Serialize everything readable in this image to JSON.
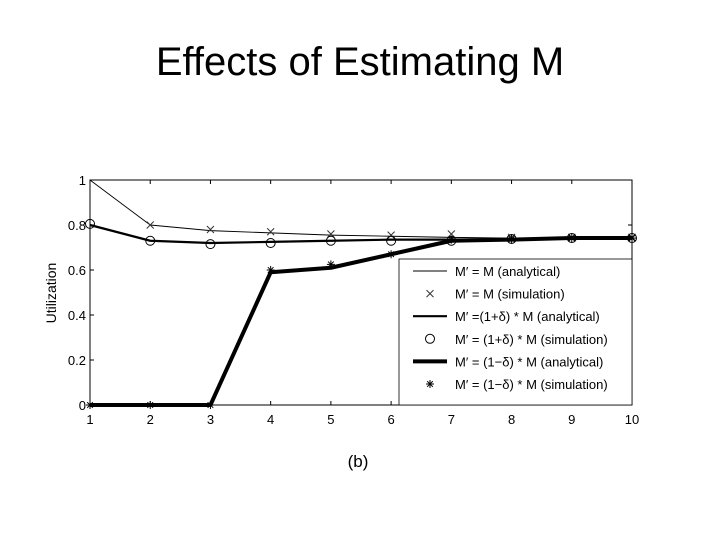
{
  "slide": {
    "title": "Effects of Estimating M"
  },
  "chart_data": {
    "type": "line",
    "title": "",
    "xlabel": "",
    "ylabel": "Utilization",
    "caption": "(b)",
    "x": [
      1,
      2,
      3,
      4,
      5,
      6,
      7,
      8,
      9,
      10
    ],
    "xlim": [
      1,
      10
    ],
    "ylim": [
      0,
      1
    ],
    "x_ticks": [
      "1",
      "2",
      "3",
      "4",
      "5",
      "6",
      "7",
      "8",
      "9",
      "10"
    ],
    "y_ticks": [
      {
        "value": 0,
        "label": "0"
      },
      {
        "value": 0.2,
        "label": "0.2"
      },
      {
        "value": 0.4,
        "label": "0.4"
      },
      {
        "value": 0.6,
        "label": "0.6"
      },
      {
        "value": 0.8,
        "label": "0.8"
      },
      {
        "value": 1,
        "label": "1"
      }
    ],
    "grid": false,
    "legend_position": "right",
    "series": [
      {
        "name": "M′ = M (analytical)",
        "style": "thin-line",
        "values": [
          1.0,
          0.8,
          0.775,
          0.765,
          0.755,
          0.75,
          0.745,
          0.742,
          0.742,
          0.742
        ]
      },
      {
        "name": "M′ = M (simulation)",
        "style": "x-marker",
        "values": [
          null,
          0.8,
          0.78,
          0.77,
          0.76,
          0.755,
          0.76,
          0.745,
          0.745,
          0.745
        ]
      },
      {
        "name": "M′ =(1+δ) * M (analytical)",
        "style": "medium-line",
        "values": [
          0.8,
          0.73,
          0.72,
          0.725,
          0.73,
          0.735,
          0.735,
          0.738,
          0.742,
          0.742
        ]
      },
      {
        "name": "M′ = (1+δ) * M (simulation)",
        "style": "circle-marker",
        "values": [
          0.805,
          0.73,
          0.715,
          0.72,
          0.73,
          0.73,
          0.73,
          0.738,
          0.742,
          0.742
        ]
      },
      {
        "name": "M′ = (1−δ) * M (analytical)",
        "style": "thick-line",
        "values": [
          0,
          0,
          0,
          0.59,
          0.61,
          0.67,
          0.73,
          0.735,
          0.742,
          0.742
        ]
      },
      {
        "name": "M′ = (1−δ) * M (simulation)",
        "style": "star-marker",
        "values": [
          0,
          0,
          0,
          0.6,
          0.625,
          0.67,
          0.735,
          0.738,
          0.742,
          0.742
        ]
      }
    ]
  }
}
